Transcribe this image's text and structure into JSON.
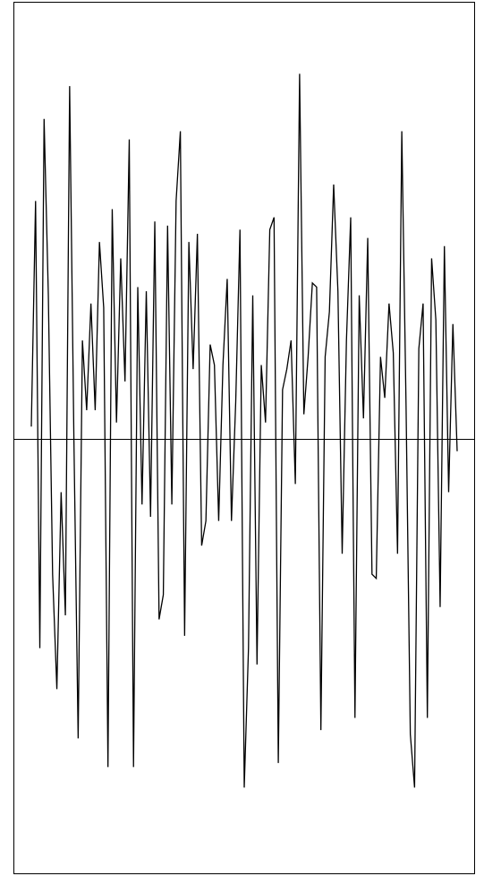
{
  "chart_data": {
    "type": "line",
    "title": "",
    "xlabel": "",
    "ylabel": "",
    "axes": {
      "x_ticks": false,
      "y_ticks": false,
      "grid": false,
      "baseline": 0,
      "ylim": [
        -1.0,
        1.0
      ],
      "xlim": [
        0,
        100
      ]
    },
    "colors": {
      "line": "#000000",
      "frame": "#000000",
      "background": "#ffffff"
    },
    "series": [
      {
        "values": [
          0.03,
          0.58,
          -0.51,
          0.78,
          0.35,
          -0.33,
          -0.61,
          -0.13,
          -0.43,
          0.86,
          0.0,
          -0.73,
          0.24,
          0.07,
          0.33,
          0.07,
          0.48,
          0.32,
          -0.8,
          0.56,
          0.04,
          0.44,
          0.14,
          0.73,
          -0.8,
          0.37,
          -0.16,
          0.36,
          -0.19,
          0.53,
          -0.44,
          -0.38,
          0.52,
          -0.16,
          0.58,
          0.75,
          -0.48,
          0.48,
          0.17,
          0.5,
          -0.26,
          -0.2,
          0.23,
          0.18,
          -0.2,
          0.18,
          0.39,
          -0.2,
          0.09,
          0.51,
          -0.85,
          -0.51,
          0.35,
          -0.55,
          0.18,
          0.04,
          0.51,
          0.54,
          -0.79,
          0.12,
          0.17,
          0.24,
          -0.11,
          0.89,
          0.06,
          0.2,
          0.38,
          0.37,
          -0.71,
          0.2,
          0.31,
          0.62,
          0.36,
          -0.28,
          0.24,
          0.54,
          -0.68,
          0.35,
          0.05,
          0.49,
          -0.33,
          -0.34,
          0.2,
          0.1,
          0.33,
          0.21,
          -0.28,
          0.75,
          0.08,
          -0.72,
          -0.85,
          0.22,
          0.33,
          -0.68,
          0.44,
          0.29,
          -0.41,
          0.47,
          -0.13,
          0.28,
          -0.03
        ]
      }
    ]
  }
}
